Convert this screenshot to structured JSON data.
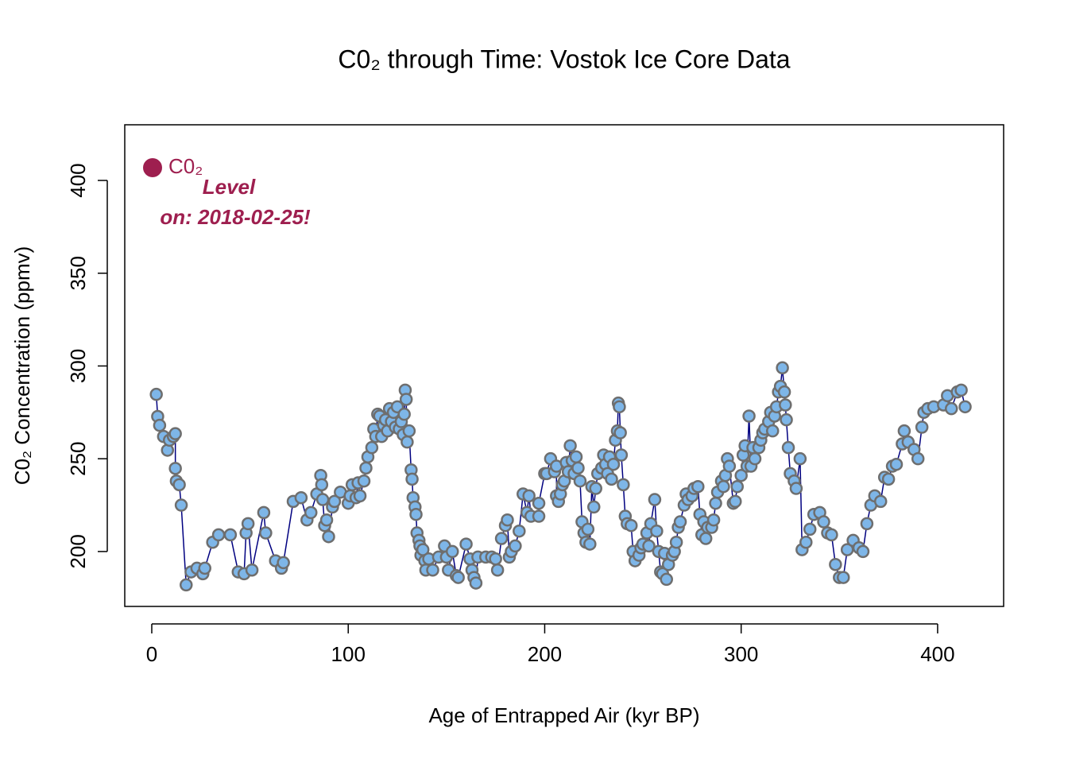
{
  "chart_data": {
    "type": "line",
    "title": "C0₂ through Time: Vostok Ice Core Data",
    "xlabel": "Age of Entrapped Air (kyr BP)",
    "ylabel": "C0₂ Concentration (ppmv)",
    "legend": "topleft",
    "legend_color": "#9E1F4F",
    "annotation": [
      "Level",
      "on: 2018-02-25!"
    ],
    "xlim": [
      -13.75,
      433.6
    ],
    "ylim": [
      170.4,
      430
    ],
    "xticks": [
      0,
      100,
      200,
      300,
      400
    ],
    "yticks": [
      200,
      250,
      300,
      350,
      400
    ],
    "x": [
      2.3,
      3,
      4,
      6,
      8,
      9,
      11,
      12,
      12,
      12.5,
      14,
      15,
      17.5,
      20,
      23,
      26,
      27,
      31,
      34,
      40,
      44,
      47,
      48,
      49,
      51,
      57,
      58,
      63,
      66,
      67,
      72,
      76,
      79,
      81,
      84,
      86,
      86.5,
      87,
      88,
      89,
      90,
      92,
      93,
      96,
      100,
      101,
      102,
      104,
      105,
      106,
      108,
      109,
      110,
      112,
      113,
      114,
      115,
      116,
      117,
      118,
      119,
      120,
      121,
      122,
      123,
      124,
      125,
      126,
      127,
      128,
      128.5,
      129,
      129.5,
      130,
      131,
      132,
      132.5,
      133,
      134,
      134.5,
      135,
      136,
      136.5,
      137,
      138,
      139,
      139.5,
      141,
      143,
      146,
      149,
      150,
      151,
      153,
      155,
      156,
      160,
      162,
      163,
      164,
      165,
      166,
      170,
      173,
      175,
      176,
      178,
      180,
      181,
      182,
      183,
      185,
      187,
      189,
      191,
      192,
      193,
      197,
      197,
      200,
      201,
      203,
      205,
      206,
      206,
      207,
      208,
      209,
      210,
      211,
      212,
      213,
      214,
      215,
      216,
      217,
      218,
      219,
      220,
      221,
      222,
      223,
      224,
      225,
      226,
      227,
      229,
      230,
      231,
      232,
      233,
      234,
      235,
      236,
      237,
      237.5,
      238,
      238.5,
      239,
      240,
      241,
      242,
      244,
      245,
      246,
      248,
      249,
      250,
      252,
      253,
      254,
      256,
      257,
      258,
      259,
      260,
      261,
      262,
      263,
      265,
      266,
      267,
      268,
      269,
      271,
      272,
      273,
      275,
      276,
      278,
      279,
      280,
      281,
      282,
      283,
      285,
      286,
      287,
      288,
      290,
      291,
      292,
      293,
      294,
      296,
      297,
      298,
      300,
      301,
      302,
      303,
      304,
      305,
      306,
      307,
      309,
      310,
      311,
      312,
      314,
      315,
      316,
      317,
      318,
      319,
      320,
      321,
      322,
      322.5,
      323,
      324,
      325,
      327,
      328,
      330,
      331,
      333,
      335,
      337,
      340,
      342,
      344,
      346,
      348,
      350,
      352,
      354,
      357,
      360,
      362,
      364,
      366,
      368,
      371,
      373,
      375,
      377,
      379,
      382,
      383,
      385,
      388,
      390,
      392,
      393,
      395,
      398,
      403,
      405,
      407,
      410,
      412,
      414
    ],
    "series": [
      {
        "name": "C0₂",
        "color": "#000080",
        "marker_fill": "#7EB6E8",
        "marker_edge": "#6E6E6E",
        "values": [
          284.7,
          272.8,
          268,
          262,
          254.6,
          260,
          262,
          263.5,
          244.8,
          238,
          236,
          225,
          182,
          189,
          191,
          188,
          191,
          205,
          209,
          209,
          189,
          188,
          210,
          215,
          190,
          221,
          210,
          195,
          191,
          194,
          227,
          229,
          217,
          221,
          231,
          241,
          236,
          228,
          214,
          217,
          208,
          224,
          227,
          232,
          226,
          230,
          236,
          229,
          237,
          230,
          238,
          245,
          251,
          256,
          266,
          262,
          274,
          273,
          262,
          268,
          271,
          265,
          277,
          270,
          275,
          267,
          278,
          266,
          270,
          263,
          274,
          287,
          282,
          259,
          265,
          244,
          239,
          229,
          224,
          220,
          210,
          206,
          203,
          198,
          201,
          195,
          190,
          196,
          190,
          197,
          203,
          197,
          190,
          200,
          187,
          186,
          204,
          196,
          190,
          186,
          183,
          197,
          197,
          197,
          196,
          190,
          207,
          214,
          217,
          197,
          200,
          203,
          211,
          231,
          221,
          230,
          219,
          219,
          226,
          242,
          242,
          250,
          243,
          246,
          230,
          227,
          231,
          236,
          238,
          248,
          243,
          257,
          249,
          242,
          251,
          245,
          238,
          216,
          210,
          205,
          212,
          204,
          235,
          224,
          234,
          242,
          245,
          252,
          247,
          242,
          251,
          239,
          247,
          260,
          265,
          280,
          278,
          264,
          252,
          236,
          219,
          215,
          214,
          200,
          195,
          198,
          202,
          204,
          210,
          203,
          215,
          228,
          211,
          200,
          189,
          188,
          199,
          185,
          193,
          198,
          200,
          205,
          213,
          216,
          225,
          231,
          228,
          230,
          234,
          235,
          220,
          209,
          216,
          207,
          213,
          213,
          217,
          226,
          232,
          238,
          235,
          241,
          250,
          246,
          226,
          227,
          235,
          241,
          252,
          257,
          246,
          273,
          246,
          256,
          250,
          256,
          260,
          264,
          266,
          270,
          275,
          265,
          273,
          278,
          286,
          289,
          299,
          286,
          279,
          271,
          256,
          242,
          238,
          234,
          250,
          201,
          205,
          212,
          220,
          221,
          216,
          210,
          209,
          193,
          186,
          186,
          201,
          206,
          202,
          200,
          215,
          225,
          230,
          227,
          240,
          239,
          246,
          247,
          258,
          265,
          259,
          255,
          250,
          267,
          275,
          277,
          278,
          279,
          284,
          277,
          286,
          287,
          278
        ]
      }
    ]
  }
}
